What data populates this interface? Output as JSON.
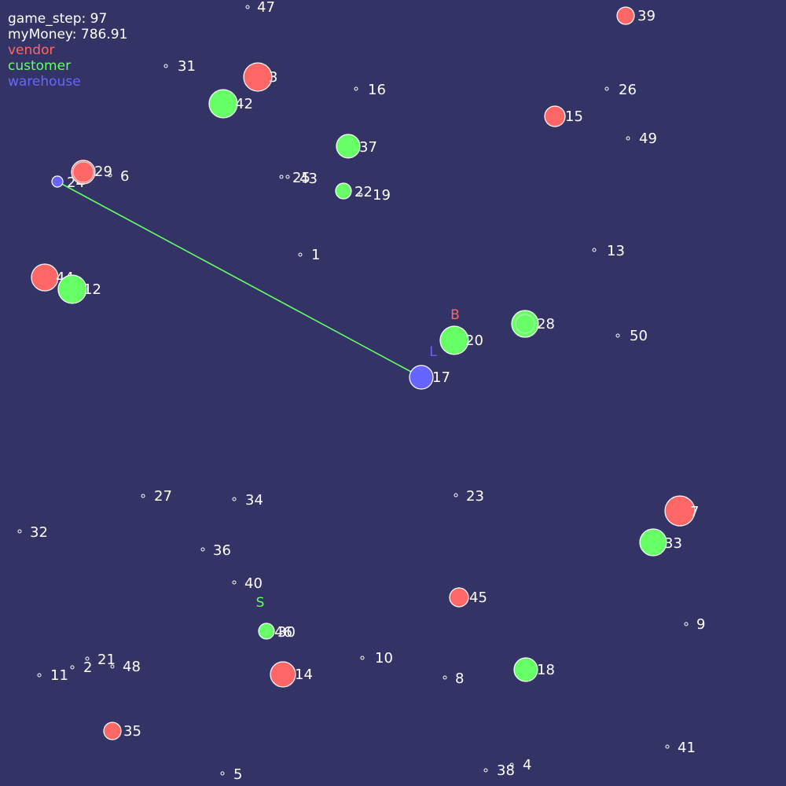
{
  "hud": {
    "game_step_label": "game_step: 97",
    "money_label": "myMoney: 786.91",
    "legend": [
      {
        "label": "vendor",
        "color": "#ff6666"
      },
      {
        "label": "customer",
        "color": "#66ff66"
      },
      {
        "label": "warehouse",
        "color": "#6666ff"
      }
    ]
  },
  "colors": {
    "background": "#333366",
    "vendor": "#ff6666",
    "customer": "#66ff66",
    "warehouse": "#6666ff",
    "text": "#ffffff"
  },
  "markers": [
    {
      "text": "B",
      "type": "vendor"
    },
    {
      "text": "L",
      "type": "warehouse"
    },
    {
      "text": "S",
      "type": "customer"
    }
  ],
  "nodes": [
    {
      "id": "47"
    },
    {
      "id": "39"
    },
    {
      "id": "31"
    },
    {
      "id": "3"
    },
    {
      "id": "42"
    },
    {
      "id": "16"
    },
    {
      "id": "26"
    },
    {
      "id": "15"
    },
    {
      "id": "49"
    },
    {
      "id": "37"
    },
    {
      "id": "24"
    },
    {
      "id": "29"
    },
    {
      "id": "6"
    },
    {
      "id": "25"
    },
    {
      "id": "43"
    },
    {
      "id": "22"
    },
    {
      "id": "19"
    },
    {
      "id": "1"
    },
    {
      "id": "13"
    },
    {
      "id": "44"
    },
    {
      "id": "12"
    },
    {
      "id": "28"
    },
    {
      "id": "50"
    },
    {
      "id": "20"
    },
    {
      "id": "17"
    },
    {
      "id": "27"
    },
    {
      "id": "34"
    },
    {
      "id": "23"
    },
    {
      "id": "7"
    },
    {
      "id": "33"
    },
    {
      "id": "32"
    },
    {
      "id": "36"
    },
    {
      "id": "40"
    },
    {
      "id": "45"
    },
    {
      "id": "46"
    },
    {
      "id": "30"
    },
    {
      "id": "9"
    },
    {
      "id": "21"
    },
    {
      "id": "48"
    },
    {
      "id": "2"
    },
    {
      "id": "11"
    },
    {
      "id": "10"
    },
    {
      "id": "14"
    },
    {
      "id": "8"
    },
    {
      "id": "18"
    },
    {
      "id": "35"
    },
    {
      "id": "41"
    },
    {
      "id": "4"
    },
    {
      "id": "38"
    },
    {
      "id": "5"
    }
  ]
}
